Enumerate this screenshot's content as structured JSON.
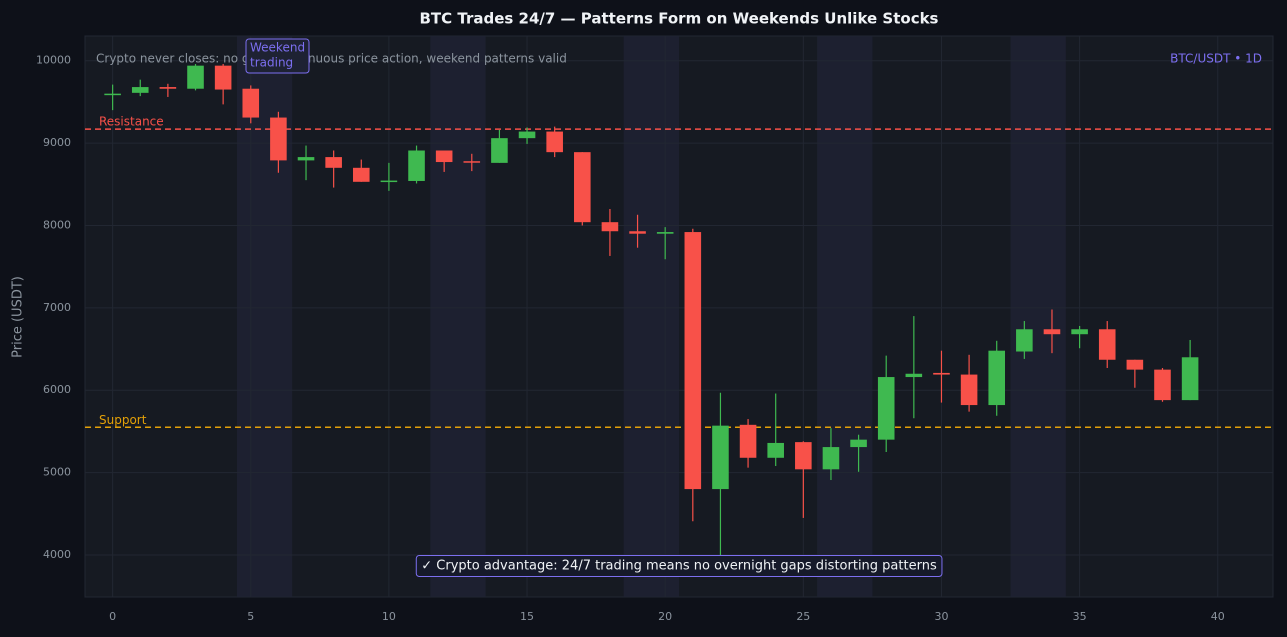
{
  "chart_data": {
    "type": "candlestick",
    "title": "BTC Trades 24/7 — Patterns Form on Weekends Unlike Stocks",
    "ylabel": "Price (USDT)",
    "note": "Crypto never closes: no gaps, continuous price action, weekend patterns valid",
    "pair_label": "BTC/USDT • 1D",
    "bottom_annotation": "✓ Crypto advantage: 24/7 trading means no overnight gaps distorting patterns",
    "weekend_annotation": [
      "Weekend",
      "trading"
    ],
    "x": [
      0,
      1,
      2,
      3,
      4,
      5,
      6,
      7,
      8,
      9,
      10,
      11,
      12,
      13,
      14,
      15,
      16,
      17,
      18,
      19,
      20,
      21,
      22,
      23,
      24,
      25,
      26,
      27,
      28,
      29,
      30,
      31,
      32,
      33,
      34,
      35,
      36,
      37,
      38,
      39
    ],
    "open": [
      9590,
      9610,
      9680,
      9660,
      9940,
      9660,
      9310,
      8790,
      8830,
      8700,
      8530,
      8540,
      8910,
      8780,
      8760,
      9060,
      9140,
      8890,
      8040,
      7930,
      7900,
      7920,
      4800,
      5580,
      5180,
      5370,
      5040,
      5310,
      5400,
      6160,
      6210,
      6190,
      5820,
      6470,
      6740,
      6680,
      6740,
      6370,
      6250,
      5880
    ],
    "high": [
      9710,
      9770,
      9720,
      9960,
      9960,
      9700,
      9380,
      8970,
      8910,
      8800,
      8760,
      8970,
      8910,
      8870,
      9160,
      9190,
      9200,
      8890,
      8200,
      8130,
      7980,
      7960,
      5970,
      5650,
      5960,
      5380,
      5540,
      5460,
      6420,
      6900,
      6480,
      6430,
      6600,
      6840,
      6980,
      6780,
      6840,
      6370,
      6270,
      6610
    ],
    "low": [
      9400,
      9570,
      9560,
      9640,
      9470,
      9240,
      8640,
      8550,
      8460,
      8530,
      8420,
      8510,
      8650,
      8660,
      8760,
      8990,
      8830,
      8000,
      7630,
      7730,
      7590,
      4410,
      3980,
      5060,
      5080,
      4450,
      4910,
      5010,
      5250,
      5660,
      5850,
      5740,
      5690,
      6380,
      6450,
      6510,
      6270,
      6030,
      5860,
      5880
    ],
    "close": [
      9600,
      9680,
      9660,
      9940,
      9650,
      9310,
      8790,
      8830,
      8700,
      8530,
      8545,
      8910,
      8770,
      8770,
      9060,
      9140,
      8890,
      8040,
      7930,
      7900,
      7920,
      4800,
      5570,
      5180,
      5360,
      5040,
      5310,
      5400,
      6160,
      6200,
      6190,
      5820,
      6480,
      6740,
      6680,
      6740,
      6370,
      6250,
      5880,
      6400
    ],
    "up_color": "#3fb950",
    "down_color": "#f85149",
    "weekend_bands": [
      [
        4.5,
        6.5
      ],
      [
        11.5,
        13.5
      ],
      [
        18.5,
        20.5
      ],
      [
        25.5,
        27.5
      ],
      [
        32.5,
        34.5
      ]
    ],
    "reference_lines": [
      {
        "name": "Resistance",
        "value": 9170,
        "color": "#f85149"
      },
      {
        "name": "Support",
        "value": 5550,
        "color": "#e3a008"
      }
    ],
    "xlim": [
      -1,
      42
    ],
    "ylim": [
      3490,
      10300
    ],
    "xticks": [
      0,
      5,
      10,
      15,
      20,
      25,
      30,
      35,
      40
    ],
    "yticks": [
      4000,
      5000,
      6000,
      7000,
      8000,
      9000,
      10000
    ],
    "grid": true
  }
}
